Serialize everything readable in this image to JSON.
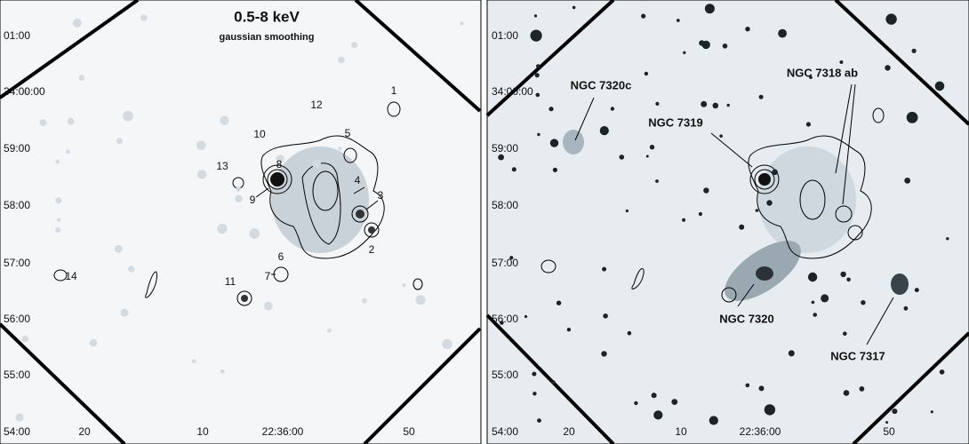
{
  "panels": [
    {
      "title": "0.5-8  keV",
      "subtitle": "gaussian smoothing",
      "y_labels": [
        "01:00",
        "34:00:00",
        "59:00",
        "58:00",
        "57:00",
        "56:00",
        "55:00",
        "54:00"
      ],
      "x_labels": [
        "20",
        "10",
        "22:36:00",
        "50"
      ],
      "sources": [
        "1",
        "12",
        "10",
        "5",
        "13",
        "8",
        "9",
        "4",
        "3",
        "2",
        "6",
        "7",
        "11",
        "14"
      ]
    },
    {
      "y_labels": [
        "01:00",
        "34:00:00",
        "59:00",
        "58:00",
        "57:00",
        "56:00",
        "55:00",
        "54:00"
      ],
      "x_labels": [
        "20",
        "10",
        "22:36:00",
        "50"
      ],
      "galaxies": [
        "NGC  7320c",
        "NGC  7319",
        "NGC  7318 ab",
        "NGC  7320",
        "NGC  7317"
      ]
    }
  ]
}
